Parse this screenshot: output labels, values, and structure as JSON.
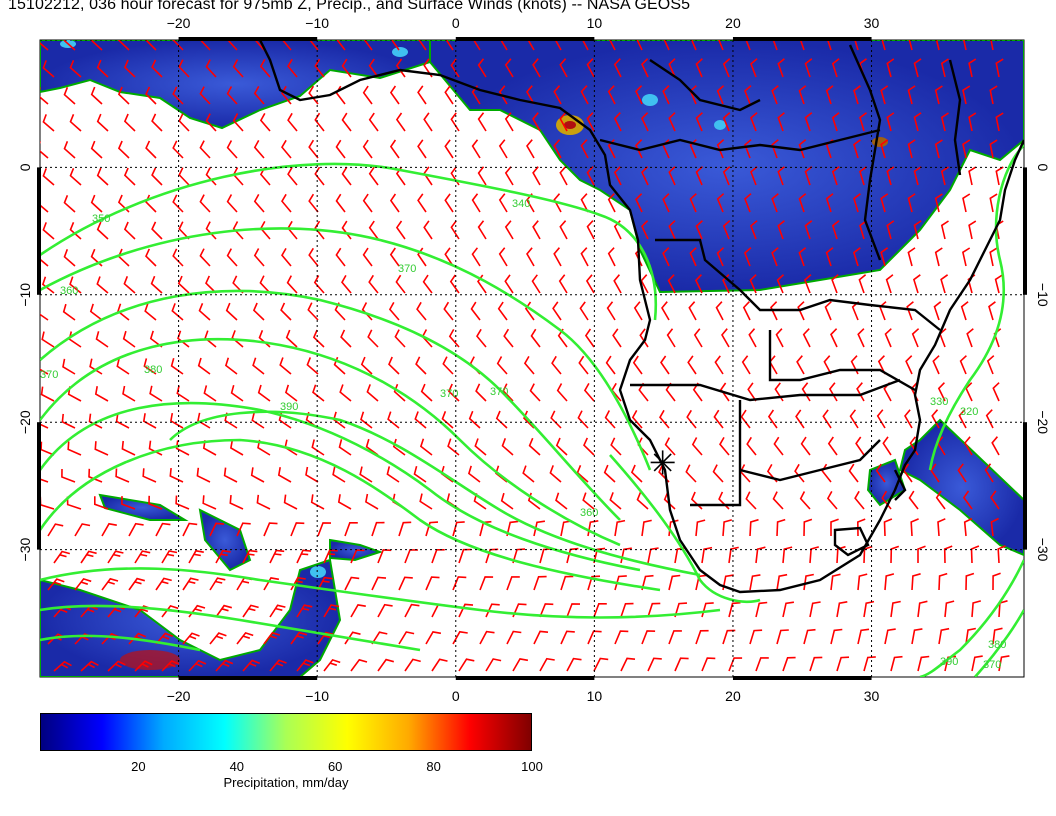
{
  "title": "15102212, 036 hour forecast for 975mb Z, Precip., and Surface Winds (knots) -- NASA GEOS5",
  "map": {
    "lon_range": [
      -30,
      41
    ],
    "lat_range": [
      -40,
      10
    ],
    "lon_ticks": [
      -20,
      -10,
      0,
      10,
      20,
      30
    ],
    "lat_ticks": [
      0,
      -10,
      -20,
      -30
    ],
    "contour_labels": [
      "350",
      "340",
      "360",
      "370",
      "380",
      "390",
      "370",
      "370",
      "370",
      "360",
      "330",
      "320",
      "390",
      "380",
      "370"
    ],
    "marker": {
      "lon": 15,
      "lat": -23,
      "symbol": "asterisk"
    },
    "colors": {
      "wind_barbs": "#ff0000",
      "contours": "#33ee33",
      "coast": "#000000",
      "grid": "#000000"
    }
  },
  "colorbar": {
    "label": "Precipitation, mm/day",
    "ticks": [
      "20",
      "40",
      "60",
      "80",
      "100"
    ],
    "range": [
      0,
      100
    ],
    "colors": [
      "#000080",
      "#0000ff",
      "#00aaff",
      "#00ffff",
      "#aaff55",
      "#ffff00",
      "#ffaa00",
      "#ff0000",
      "#800000"
    ]
  }
}
